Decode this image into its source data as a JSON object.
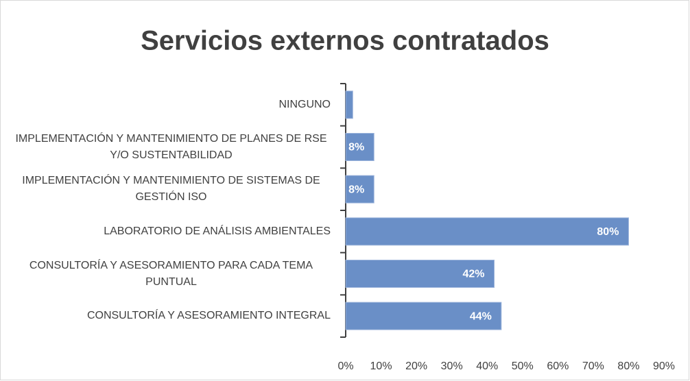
{
  "chart_data": {
    "type": "bar",
    "orientation": "horizontal",
    "title": "Servicios externos contratados",
    "categories": [
      "NINGUNO",
      "IMPLEMENTACIÓN Y MANTENIMIENTO DE PLANES DE RSE Y/O SUSTENTABILIDAD",
      "IMPLEMENTACIÓN Y MANTENIMIENTO DE SISTEMAS DE GESTIÓN ISO",
      "LABORATORIO DE ANÁLISIS AMBIENTALES",
      "CONSULTORÍA Y ASESORAMIENTO PARA CADA TEMA PUNTUAL",
      "CONSULTORÍA Y ASESORAMIENTO INTEGRAL"
    ],
    "values": [
      2,
      8,
      8,
      80,
      42,
      44
    ],
    "value_labels": [
      null,
      "8%",
      "8%",
      "80%",
      "42%",
      "44%"
    ],
    "color": "#6a8fc7",
    "xlim": [
      0,
      90
    ],
    "xticks": [
      {
        "value": 0,
        "label": "0%"
      },
      {
        "value": 10,
        "label": "10%"
      },
      {
        "value": 20,
        "label": "20%"
      },
      {
        "value": 30,
        "label": "30%"
      },
      {
        "value": 40,
        "label": "40%"
      },
      {
        "value": 50,
        "label": "50%"
      },
      {
        "value": 60,
        "label": "60%"
      },
      {
        "value": 70,
        "label": "70%"
      },
      {
        "value": 80,
        "label": "80%"
      },
      {
        "value": 90,
        "label": "90%"
      }
    ],
    "grid": false
  }
}
